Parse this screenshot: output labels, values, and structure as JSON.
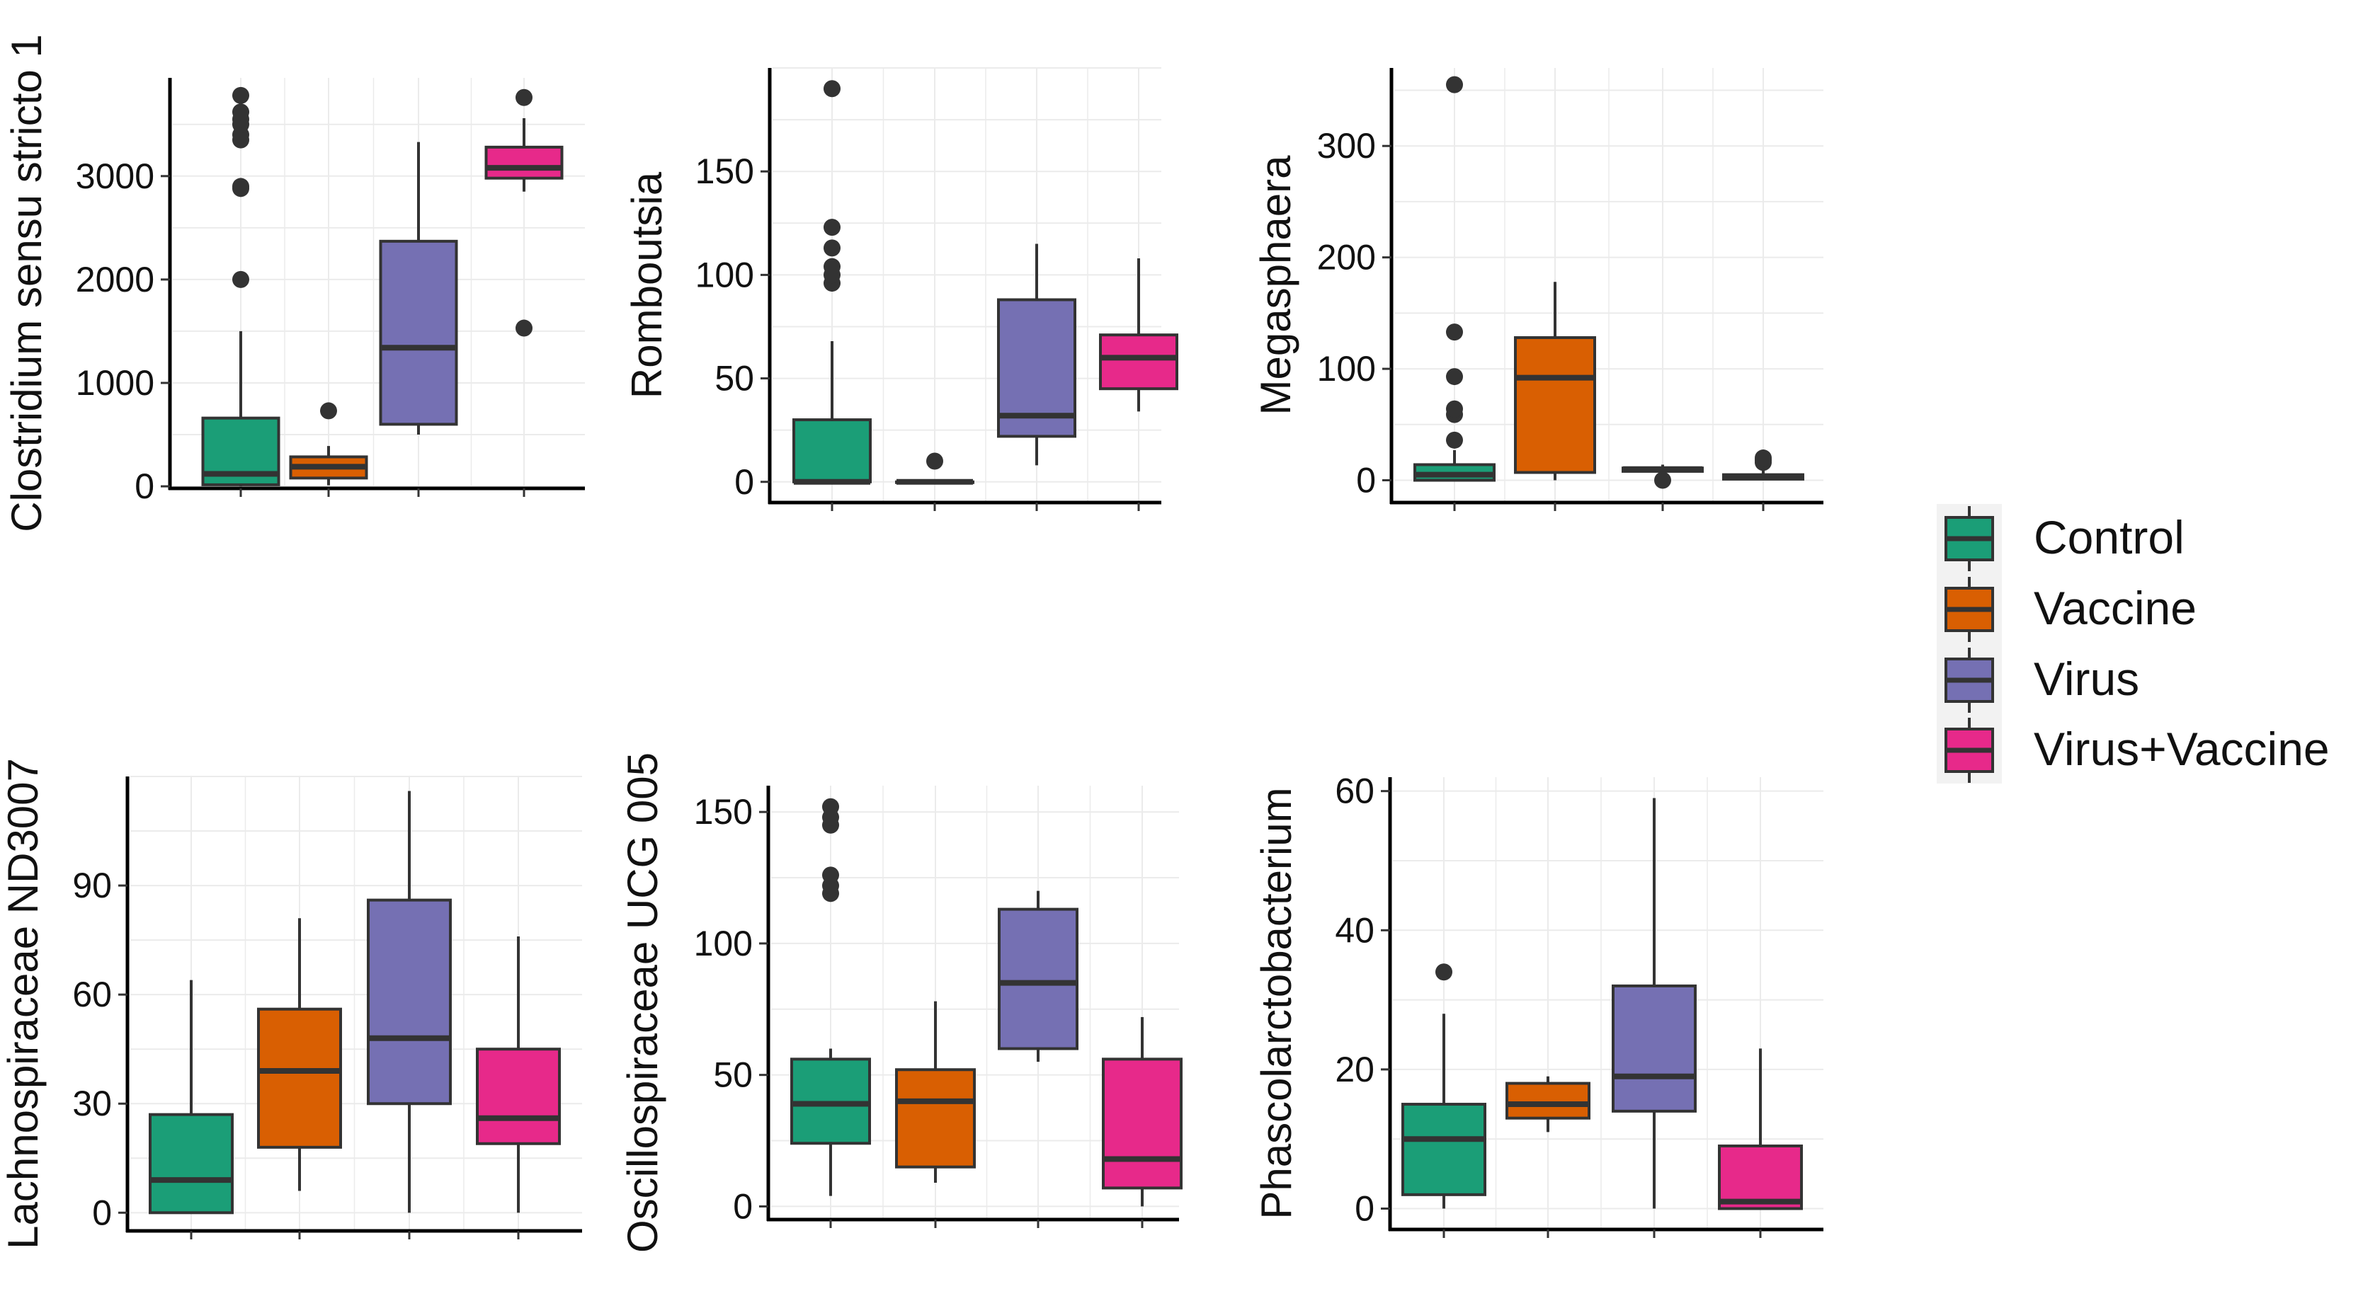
{
  "groups": [
    "Control",
    "Vaccine",
    "Virus",
    "Virus+Vaccine"
  ],
  "colors": {
    "Control": "#1b9e77",
    "Vaccine": "#d95f02",
    "Virus": "#7570b3",
    "Virus+Vaccine": "#e7298a",
    "outline": "#333333",
    "grid": "#ebebeb",
    "legend_bg": "#f2f2f2"
  },
  "legend": {
    "entries": [
      "Control",
      "Vaccine",
      "Virus",
      "Virus+Vaccine"
    ],
    "position": "right"
  },
  "chart_data": [
    {
      "type": "boxplot",
      "ylabel": "Clostridium sensu stricto 1",
      "ylim": [
        -20,
        3950
      ],
      "yticks": [
        0,
        1000,
        2000,
        3000
      ],
      "boxes": [
        {
          "group": "Control",
          "whisker_low": 0,
          "q1": 15,
          "median": 120,
          "q3": 660,
          "whisker_high": 1500,
          "outliers": [
            2000,
            2880,
            2900,
            3350,
            3400,
            3500,
            3550,
            3620,
            3780
          ]
        },
        {
          "group": "Vaccine",
          "whisker_low": 10,
          "q1": 80,
          "median": 190,
          "q3": 285,
          "whisker_high": 390,
          "outliers": [
            730
          ]
        },
        {
          "group": "Virus",
          "whisker_low": 500,
          "q1": 600,
          "median": 1340,
          "q3": 2370,
          "whisker_high": 3330,
          "outliers": []
        },
        {
          "group": "Virus+Vaccine",
          "whisker_low": 2850,
          "q1": 2980,
          "median": 3080,
          "q3": 3280,
          "whisker_high": 3560,
          "outliers": [
            1530,
            3760
          ]
        }
      ]
    },
    {
      "type": "boxplot",
      "ylabel": "Romboutsia",
      "ylim": [
        -10,
        200
      ],
      "yticks": [
        0,
        50,
        100,
        150
      ],
      "boxes": [
        {
          "group": "Control",
          "whisker_low": 0,
          "q1": 0,
          "median": 0,
          "q3": 30,
          "whisker_high": 68,
          "outliers": [
            96,
            100,
            104,
            113,
            123,
            190
          ]
        },
        {
          "group": "Vaccine",
          "whisker_low": 0,
          "q1": 0,
          "median": 0,
          "q3": 0,
          "whisker_high": 0,
          "outliers": [
            10
          ]
        },
        {
          "group": "Virus",
          "whisker_low": 8,
          "q1": 22,
          "median": 32,
          "q3": 88,
          "whisker_high": 115,
          "outliers": []
        },
        {
          "group": "Virus+Vaccine",
          "whisker_low": 34,
          "q1": 45,
          "median": 60,
          "q3": 71,
          "whisker_high": 108,
          "outliers": []
        }
      ]
    },
    {
      "type": "boxplot",
      "ylabel": "Megasphaera",
      "ylim": [
        -20,
        370
      ],
      "yticks": [
        0,
        100,
        200,
        300
      ],
      "boxes": [
        {
          "group": "Control",
          "whisker_low": 0,
          "q1": 0,
          "median": 5,
          "q3": 14,
          "whisker_high": 27,
          "outliers": [
            36,
            59,
            64,
            93,
            133,
            355
          ]
        },
        {
          "group": "Vaccine",
          "whisker_low": 0,
          "q1": 7,
          "median": 92,
          "q3": 128,
          "whisker_high": 178,
          "outliers": []
        },
        {
          "group": "Virus",
          "whisker_low": 8,
          "q1": 8,
          "median": 10,
          "q3": 11,
          "whisker_high": 14,
          "outliers": [
            0
          ]
        },
        {
          "group": "Virus+Vaccine",
          "whisker_low": 0,
          "q1": 1,
          "median": 3,
          "q3": 5,
          "whisker_high": 9,
          "outliers": [
            16,
            18,
            20
          ]
        }
      ]
    },
    {
      "type": "boxplot",
      "ylabel": "Lachnospiraceae ND3007",
      "ylim": [
        -5,
        120
      ],
      "yticks": [
        0,
        30,
        60,
        90
      ],
      "boxes": [
        {
          "group": "Control",
          "whisker_low": 0,
          "q1": 0,
          "median": 9,
          "q3": 27,
          "whisker_high": 64,
          "outliers": []
        },
        {
          "group": "Vaccine",
          "whisker_low": 6,
          "q1": 18,
          "median": 39,
          "q3": 56,
          "whisker_high": 81,
          "outliers": []
        },
        {
          "group": "Virus",
          "whisker_low": 0,
          "q1": 30,
          "median": 48,
          "q3": 86,
          "whisker_high": 116,
          "outliers": []
        },
        {
          "group": "Virus+Vaccine",
          "whisker_low": 0,
          "q1": 19,
          "median": 26,
          "q3": 45,
          "whisker_high": 76,
          "outliers": []
        }
      ]
    },
    {
      "type": "boxplot",
      "ylabel": "Oscillospiraceae UCG 005",
      "ylim": [
        -5,
        160
      ],
      "yticks": [
        0,
        50,
        100,
        150
      ],
      "boxes": [
        {
          "group": "Control",
          "whisker_low": 4,
          "q1": 24,
          "median": 39,
          "q3": 56,
          "whisker_high": 60,
          "outliers": [
            119,
            122,
            126,
            145,
            148,
            152
          ]
        },
        {
          "group": "Vaccine",
          "whisker_low": 9,
          "q1": 15,
          "median": 40,
          "q3": 52,
          "whisker_high": 78,
          "outliers": []
        },
        {
          "group": "Virus",
          "whisker_low": 55,
          "q1": 60,
          "median": 85,
          "q3": 113,
          "whisker_high": 120,
          "outliers": []
        },
        {
          "group": "Virus+Vaccine",
          "whisker_low": 0,
          "q1": 7,
          "median": 18,
          "q3": 56,
          "whisker_high": 72,
          "outliers": []
        }
      ]
    },
    {
      "type": "boxplot",
      "ylabel": "Phascolarctobacterium",
      "ylim": [
        -3,
        62
      ],
      "yticks": [
        0,
        20,
        40,
        60
      ],
      "boxes": [
        {
          "group": "Control",
          "whisker_low": 0,
          "q1": 2,
          "median": 10,
          "q3": 15,
          "whisker_high": 28,
          "outliers": [
            34
          ]
        },
        {
          "group": "Vaccine",
          "whisker_low": 11,
          "q1": 13,
          "median": 15,
          "q3": 18,
          "whisker_high": 19,
          "outliers": []
        },
        {
          "group": "Virus",
          "whisker_low": 0,
          "q1": 14,
          "median": 19,
          "q3": 32,
          "whisker_high": 59,
          "outliers": []
        },
        {
          "group": "Virus+Vaccine",
          "whisker_low": 0,
          "q1": 0,
          "median": 1,
          "q3": 9,
          "whisker_high": 23,
          "outliers": []
        }
      ]
    }
  ]
}
